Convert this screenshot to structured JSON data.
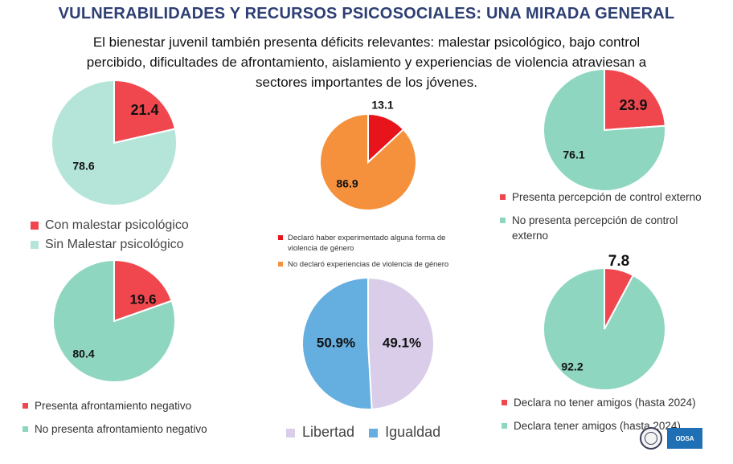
{
  "header": {
    "title": "VULNERABILIDADES Y RECURSOS PSICOSOCIALES: UNA MIRADA GENERAL",
    "subtitle": "El bienestar juvenil también presenta déficits relevantes: malestar psicológico, bajo control percibido, dificultades de afrontamiento, aislamiento y experiencias de violencia atraviesan a sectores importantes de los jóvenes."
  },
  "chart_data": [
    {
      "type": "pie",
      "slices": [
        {
          "label": "Con malestar psicológico",
          "value": 21.4,
          "color": "#f0474f"
        },
        {
          "label": "Sin Malestar psicológico",
          "value": 78.6,
          "color": "#b5e5d9"
        }
      ],
      "labels": [
        "21.4",
        "78.6"
      ],
      "legend": [
        "Con malestar psicológico",
        "Sin Malestar psicológico"
      ]
    },
    {
      "type": "pie",
      "slices": [
        {
          "label": "Declaró haber experimentado alguna forma de violencia de género",
          "value": 13.1,
          "color": "#e8141c"
        },
        {
          "label": "No declaró experiencias de violencia de género",
          "value": 86.9,
          "color": "#f5913c"
        }
      ],
      "labels": [
        "13.1",
        "86.9"
      ],
      "legend": [
        "Declaró haber experimentado alguna forma de violencia de género",
        "No declaró experiencias de violencia de género"
      ]
    },
    {
      "type": "pie",
      "slices": [
        {
          "label": "Presenta percepción de control externo",
          "value": 23.9,
          "color": "#f0474f"
        },
        {
          "label": "No presenta percepción de control externo",
          "value": 76.1,
          "color": "#8fd6c1"
        }
      ],
      "labels": [
        "23.9",
        "76.1"
      ],
      "legend": [
        "Presenta percepción de control externo",
        "No presenta percepción de control externo"
      ]
    },
    {
      "type": "pie",
      "slices": [
        {
          "label": "Presenta afrontamiento negativo",
          "value": 19.6,
          "color": "#f0474f"
        },
        {
          "label": "No presenta afrontamiento negativo",
          "value": 80.4,
          "color": "#8fd6c1"
        }
      ],
      "labels": [
        "19.6",
        "80.4"
      ],
      "legend": [
        "Presenta afrontamiento negativo",
        "No presenta afrontamiento negativo"
      ]
    },
    {
      "type": "pie",
      "slices": [
        {
          "label": "Libertad",
          "value": 49.1,
          "color": "#d9cdea"
        },
        {
          "label": "Igualdad",
          "value": 50.9,
          "color": "#64aee0"
        }
      ],
      "labels": [
        "49.1%",
        "50.9%"
      ],
      "legend": [
        "Libertad",
        "Igualdad"
      ]
    },
    {
      "type": "pie",
      "slices": [
        {
          "label": "Declara no tener amigos (hasta 2024)",
          "value": 7.8,
          "color": "#f0474f"
        },
        {
          "label": "Declara  tener amigos (hasta 2024)",
          "value": 92.2,
          "color": "#8fd6c1"
        }
      ],
      "labels": [
        "7.8",
        "92.2"
      ],
      "legend": [
        "Declara no tener amigos (hasta 2024)",
        "Declara  tener amigos (hasta 2024)"
      ]
    }
  ],
  "logos": {
    "odsa": "ODSA"
  }
}
